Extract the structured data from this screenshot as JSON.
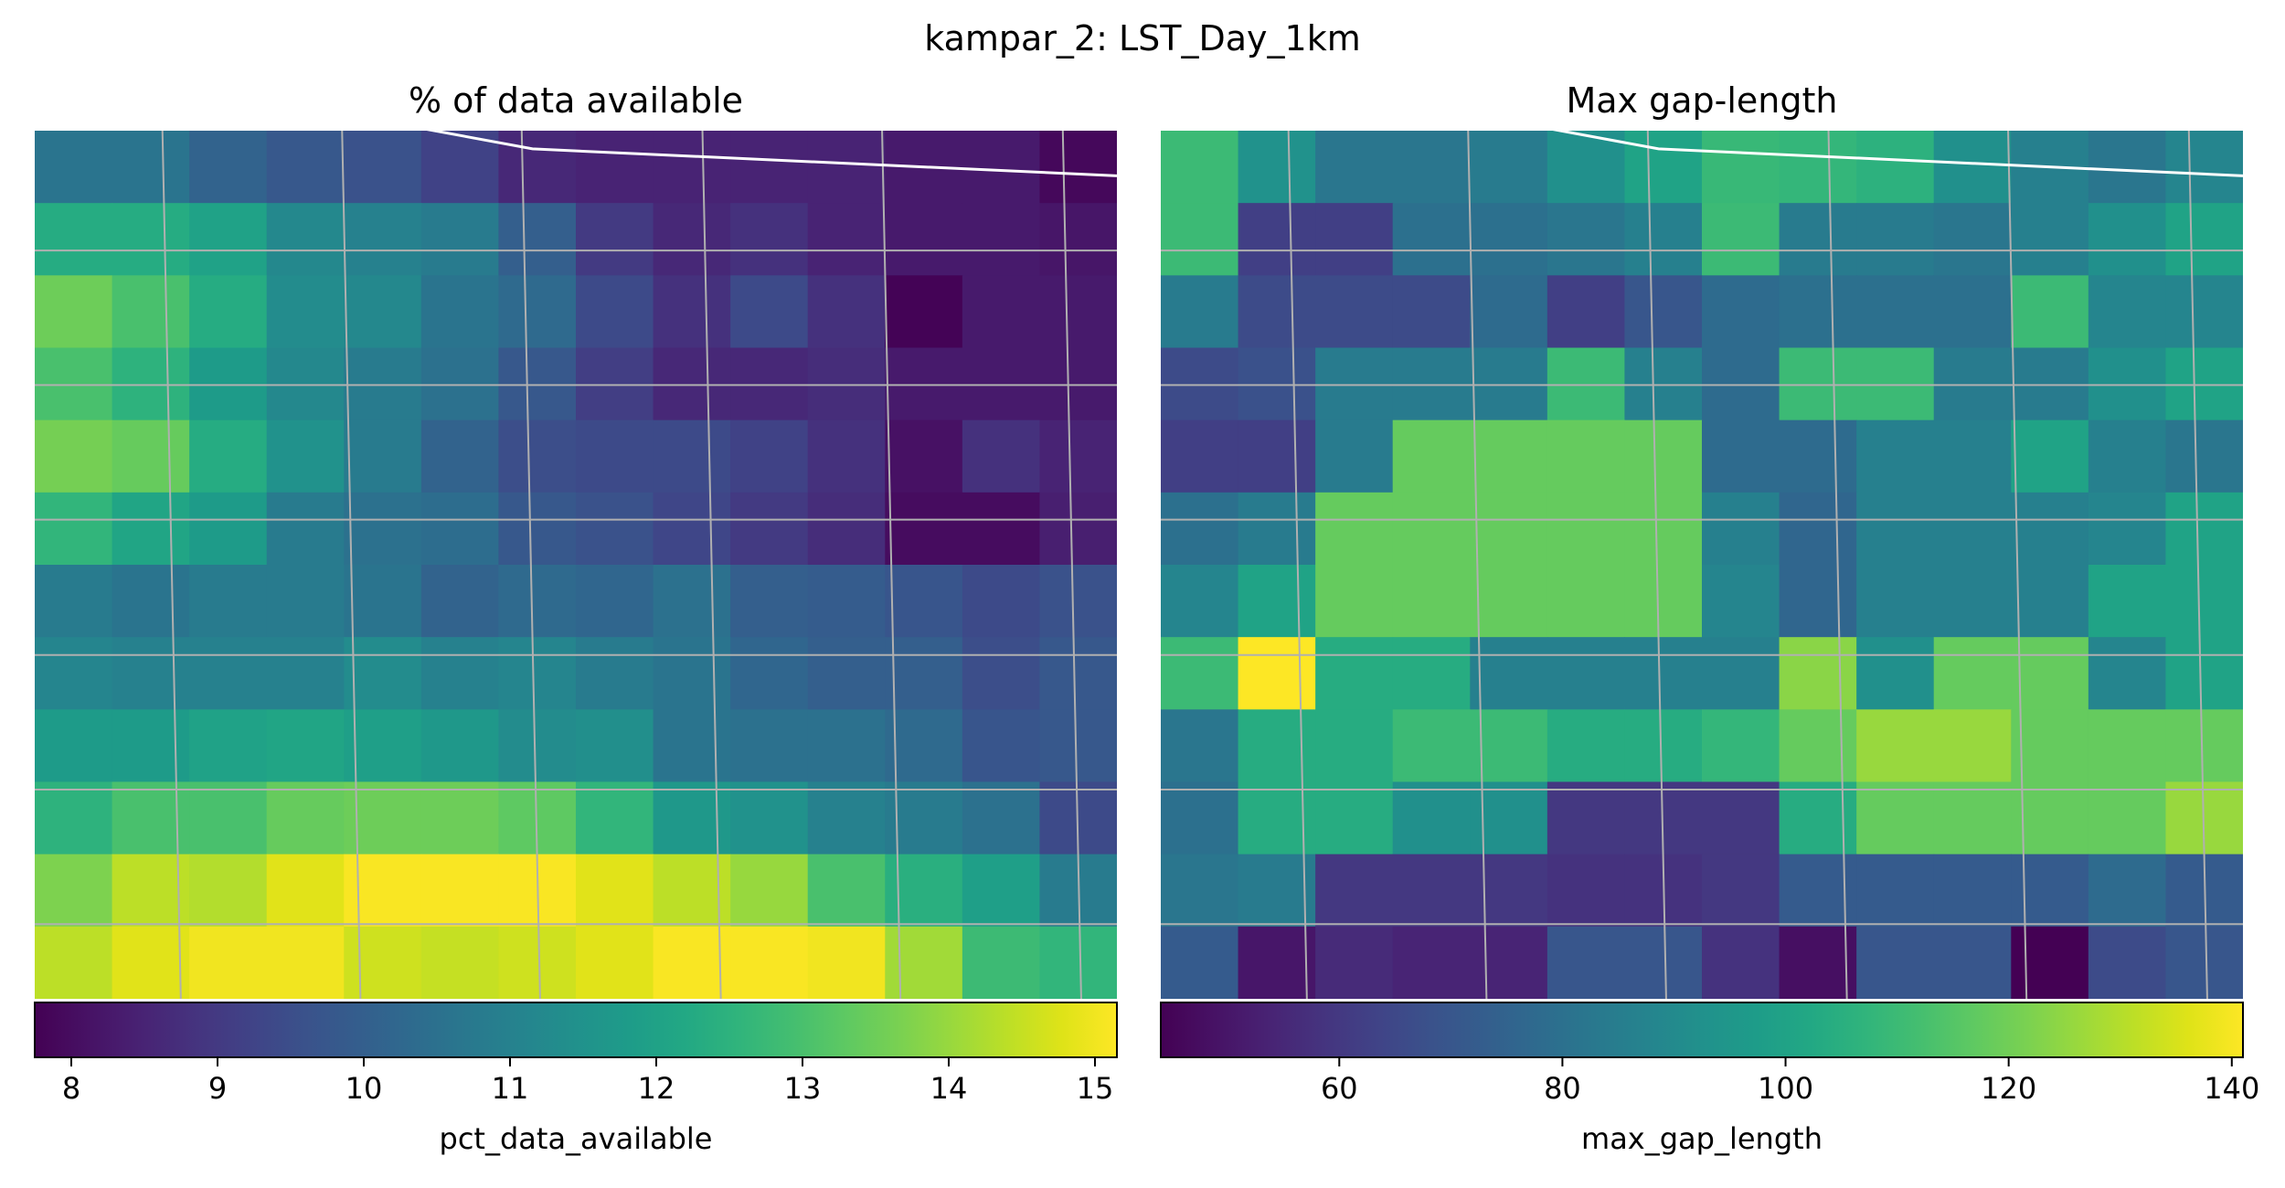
{
  "suptitle": "kampar_2: LST_Day_1km",
  "chart_data": [
    {
      "type": "heatmap",
      "title": "% of data available",
      "colormap": "viridis",
      "grid": true,
      "grid_color": "#b0b0b0",
      "boundary_color": "#ffffff",
      "rows": 12,
      "cols": 14,
      "colorbar": {
        "label": "pct_data_available",
        "vmin": 7.75,
        "vmax": 15.15,
        "ticks": [
          8,
          9,
          10,
          11,
          12,
          13,
          14,
          15
        ],
        "tick_labels": [
          "8",
          "9",
          "10",
          "11",
          "12",
          "13",
          "14",
          "15"
        ]
      },
      "values": [
        [
          10.6,
          10.6,
          10.1,
          9.8,
          9.6,
          9.2,
          8.6,
          8.5,
          8.5,
          8.5,
          8.5,
          8.3,
          8.3,
          7.9
        ],
        [
          12.3,
          12.3,
          12.0,
          11.2,
          11.0,
          10.8,
          10.0,
          9.0,
          8.6,
          8.8,
          8.5,
          8.3,
          8.3,
          8.2
        ],
        [
          13.5,
          13.0,
          12.3,
          11.3,
          11.2,
          10.6,
          10.3,
          9.4,
          8.8,
          9.4,
          8.8,
          7.8,
          8.3,
          8.3
        ],
        [
          13.0,
          12.5,
          11.8,
          11.2,
          10.8,
          10.5,
          9.8,
          9.1,
          8.6,
          8.6,
          8.7,
          8.3,
          8.3,
          8.3
        ],
        [
          13.6,
          13.4,
          12.3,
          11.5,
          10.8,
          10.1,
          9.5,
          9.4,
          9.4,
          9.2,
          8.8,
          8.1,
          8.8,
          8.5
        ],
        [
          12.6,
          12.1,
          11.8,
          10.8,
          10.5,
          10.4,
          9.8,
          9.6,
          9.3,
          9.0,
          8.7,
          8.0,
          8.0,
          8.4
        ],
        [
          10.8,
          10.6,
          10.8,
          10.8,
          10.6,
          10.1,
          10.3,
          10.2,
          10.5,
          10.0,
          9.9,
          9.7,
          9.4,
          9.6
        ],
        [
          11.1,
          11.0,
          11.0,
          11.0,
          11.3,
          11.0,
          11.1,
          10.8,
          10.6,
          10.2,
          10.0,
          10.0,
          9.5,
          9.8
        ],
        [
          11.8,
          11.8,
          12.0,
          12.1,
          11.9,
          11.7,
          11.3,
          11.4,
          10.6,
          10.5,
          10.5,
          10.3,
          9.7,
          9.8
        ],
        [
          12.5,
          13.0,
          13.0,
          13.4,
          13.5,
          13.5,
          13.3,
          12.6,
          11.7,
          11.5,
          11.0,
          10.8,
          10.5,
          9.4
        ],
        [
          13.7,
          14.4,
          14.3,
          14.8,
          15.1,
          15.1,
          15.1,
          14.8,
          14.4,
          14.0,
          13.0,
          12.4,
          11.9,
          10.8
        ],
        [
          14.4,
          14.8,
          15.0,
          15.0,
          14.6,
          14.5,
          14.6,
          14.8,
          15.1,
          15.1,
          15.0,
          14.1,
          12.8,
          12.6
        ]
      ]
    },
    {
      "type": "heatmap",
      "title": "Max gap-length",
      "colormap": "viridis",
      "grid": true,
      "grid_color": "#b0b0b0",
      "boundary_color": "#ffffff",
      "rows": 12,
      "cols": 14,
      "colorbar": {
        "label": "max_gap_length",
        "vmin": 44,
        "vmax": 141,
        "ticks": [
          60,
          80,
          100,
          120,
          140
        ],
        "tick_labels": [
          "60",
          "80",
          "100",
          "120",
          "140"
        ]
      },
      "values": [
        [
          110,
          93,
          82,
          82,
          84,
          92,
          100,
          109,
          108,
          106,
          92,
          86,
          82,
          88
        ],
        [
          110,
          62,
          62,
          80,
          80,
          82,
          86,
          110,
          84,
          84,
          82,
          86,
          92,
          100
        ],
        [
          84,
          66,
          66,
          66,
          78,
          62,
          70,
          78,
          80,
          80,
          80,
          110,
          88,
          88
        ],
        [
          66,
          68,
          84,
          84,
          84,
          110,
          86,
          78,
          110,
          110,
          84,
          84,
          92,
          100
        ],
        [
          62,
          62,
          84,
          118,
          118,
          118,
          118,
          78,
          78,
          86,
          86,
          100,
          86,
          82
        ],
        [
          80,
          84,
          118,
          118,
          118,
          118,
          118,
          86,
          76,
          86,
          86,
          86,
          88,
          100
        ],
        [
          88,
          100,
          118,
          118,
          118,
          118,
          118,
          88,
          76,
          86,
          86,
          86,
          100,
          100
        ],
        [
          110,
          141,
          104,
          104,
          86,
          86,
          86,
          86,
          124,
          92,
          118,
          118,
          88,
          100
        ],
        [
          82,
          104,
          104,
          110,
          110,
          104,
          104,
          108,
          118,
          126,
          126,
          118,
          118,
          118
        ],
        [
          80,
          104,
          104,
          92,
          92,
          60,
          60,
          60,
          104,
          118,
          118,
          118,
          118,
          126
        ],
        [
          82,
          84,
          60,
          60,
          60,
          58,
          58,
          60,
          72,
          72,
          72,
          72,
          78,
          72
        ],
        [
          72,
          50,
          56,
          54,
          54,
          70,
          70,
          58,
          48,
          70,
          70,
          44,
          66,
          70
        ]
      ]
    }
  ]
}
